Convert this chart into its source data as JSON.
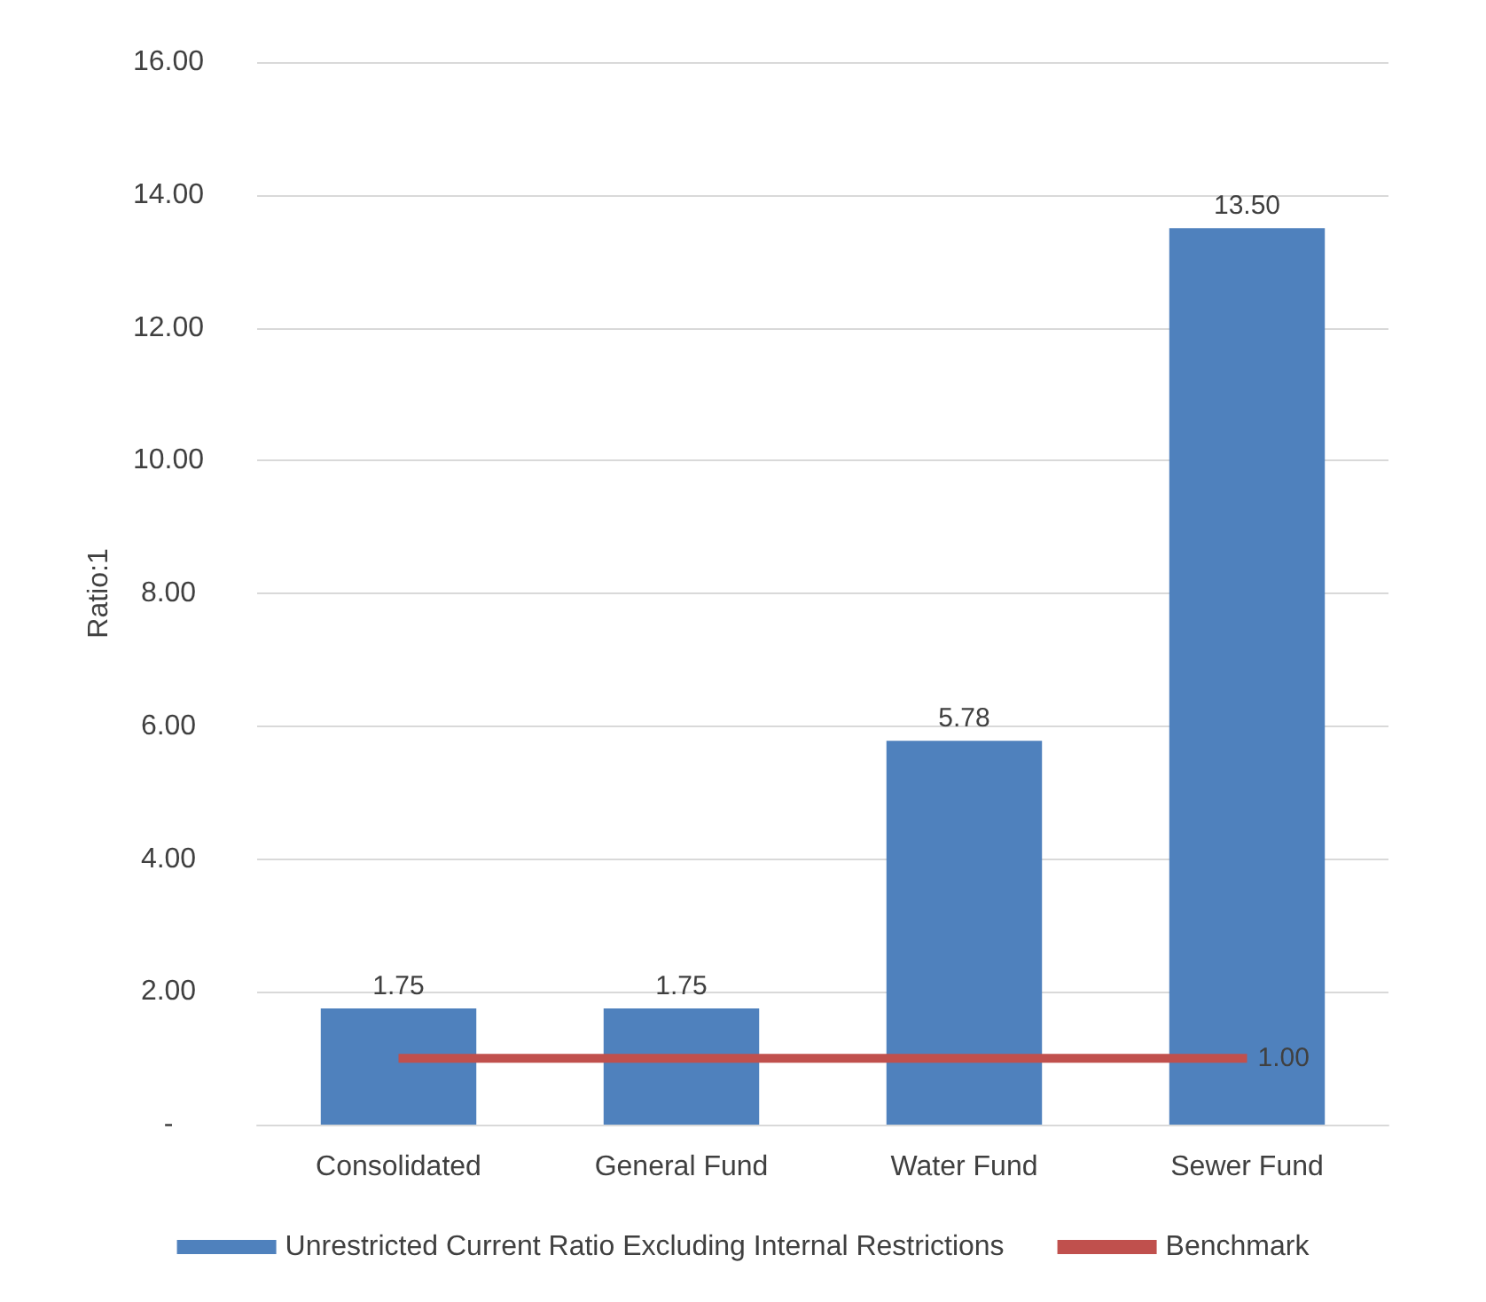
{
  "chart_data": {
    "type": "bar",
    "ylabel": "Ratio:1",
    "categories": [
      "Consolidated",
      "General Fund",
      "Water Fund",
      "Sewer Fund"
    ],
    "series": [
      {
        "name": "Unrestricted Current Ratio Excluding Internal Restrictions",
        "color": "#4f81bd",
        "values": [
          1.75,
          1.75,
          5.78,
          13.5
        ],
        "value_labels": [
          "1.75",
          "1.75",
          "5.78",
          "13.50"
        ]
      },
      {
        "name": "Benchmark",
        "type": "line",
        "color": "#c0504d",
        "values": [
          1,
          1,
          1,
          1
        ],
        "value_labels": [
          null,
          null,
          null,
          "1.00"
        ]
      }
    ],
    "ylim": [
      0,
      16
    ],
    "yticks": [
      {
        "value": 0,
        "label": "-"
      },
      {
        "value": 2,
        "label": "2.00"
      },
      {
        "value": 4,
        "label": "4.00"
      },
      {
        "value": 6,
        "label": "6.00"
      },
      {
        "value": 8,
        "label": "8.00"
      },
      {
        "value": 10,
        "label": "10.00"
      },
      {
        "value": 12,
        "label": "12.00"
      },
      {
        "value": 14,
        "label": "14.00"
      },
      {
        "value": 16,
        "label": "16.00"
      }
    ],
    "grid": "y",
    "legend": "bottom",
    "marker": "none"
  }
}
